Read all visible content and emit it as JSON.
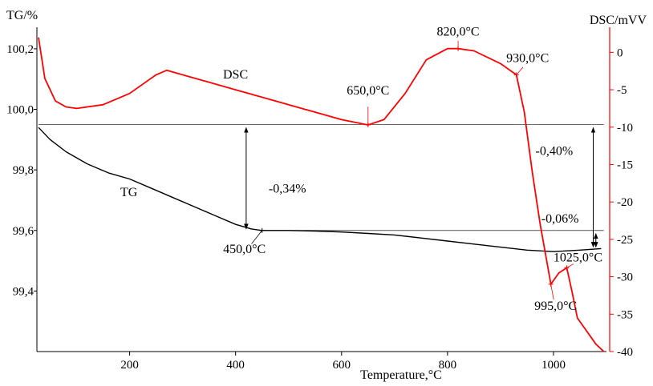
{
  "chart_data": {
    "type": "line",
    "xlabel": "Temperature,°C",
    "x_ticks": [
      200,
      400,
      600,
      800,
      1000
    ],
    "xlim": [
      25,
      1100
    ],
    "tg_axis": {
      "label": "TG/%",
      "lim": [
        99.2,
        100.25
      ],
      "ticks": [
        {
          "v": 99.4,
          "t": "99,4"
        },
        {
          "v": 99.6,
          "t": "99,6"
        },
        {
          "v": 99.8,
          "t": "99,8"
        },
        {
          "v": 100.0,
          "t": "100,0"
        },
        {
          "v": 100.2,
          "t": "100,2"
        }
      ]
    },
    "dsc_axis": {
      "label": "DSC/mVV",
      "lim": [
        -40,
        2.5
      ],
      "ticks": [
        0,
        -5,
        -10,
        -15,
        -20,
        -25,
        -30,
        -35,
        -40
      ]
    },
    "series": [
      {
        "name": "TG",
        "label": "TG",
        "color": "#000000",
        "x": [
          28,
          50,
          80,
          120,
          160,
          200,
          240,
          280,
          320,
          360,
          400,
          430,
          450,
          500,
          550,
          600,
          650,
          700,
          750,
          800,
          850,
          900,
          950,
          1000,
          1050,
          1090
        ],
        "y": [
          99.94,
          99.9,
          99.86,
          99.82,
          99.79,
          99.77,
          99.74,
          99.71,
          99.68,
          99.65,
          99.62,
          99.605,
          99.6,
          99.6,
          99.598,
          99.595,
          99.59,
          99.585,
          99.575,
          99.565,
          99.555,
          99.545,
          99.535,
          99.53,
          99.535,
          99.54
        ]
      },
      {
        "name": "DSC",
        "label": "DSC",
        "color": "#ff0000",
        "x": [
          28,
          40,
          60,
          80,
          100,
          150,
          200,
          230,
          250,
          270,
          300,
          400,
          500,
          600,
          650,
          680,
          720,
          760,
          800,
          820,
          850,
          900,
          930,
          945,
          960,
          975,
          995,
          1010,
          1025,
          1035,
          1045,
          1060,
          1080,
          1095
        ],
        "y": [
          2.0,
          -3.5,
          -6.5,
          -7.3,
          -7.5,
          -7.0,
          -5.5,
          -4.0,
          -3.0,
          -2.4,
          -3.0,
          -5.0,
          -7.0,
          -9.0,
          -9.7,
          -9.0,
          -5.5,
          -1.0,
          0.5,
          0.5,
          0.2,
          -1.5,
          -3.0,
          -8.0,
          -16.0,
          -23.0,
          -31.0,
          -29.5,
          -28.8,
          -32.0,
          -35.5,
          -37.0,
          -39.0,
          -40.0
        ]
      }
    ],
    "annotations": [
      {
        "text": "450,0°C",
        "x": 450,
        "axis": "tg",
        "y": 99.6
      },
      {
        "text": "650,0°C",
        "x": 650,
        "axis": "dsc",
        "y": -9.7
      },
      {
        "text": "820,0°C",
        "x": 820,
        "axis": "dsc",
        "y": 0.5
      },
      {
        "text": "930,0°C",
        "x": 930,
        "axis": "dsc",
        "y": -3.0
      },
      {
        "text": "995,0°C",
        "x": 995,
        "axis": "dsc",
        "y": -31.0
      },
      {
        "text": "1025,0°C",
        "x": 1025,
        "axis": "dsc",
        "y": -28.8
      }
    ],
    "mass_changes": [
      {
        "text": "-0,34%",
        "x": 420,
        "from": 99.95,
        "to": 99.6
      },
      {
        "text": "-0,40%",
        "x": 1075,
        "from": 99.95,
        "to": 99.54
      },
      {
        "text": "-0,06%",
        "x": 1080,
        "from": 99.6,
        "to": 99.54
      }
    ],
    "reference_lines": [
      {
        "axis": "tg",
        "y": 99.95,
        "x_from": 28,
        "x_to": 1095
      },
      {
        "axis": "tg",
        "y": 99.6,
        "x_from": 450,
        "x_to": 1095
      }
    ]
  }
}
